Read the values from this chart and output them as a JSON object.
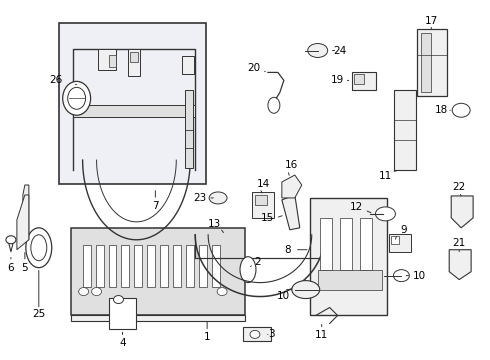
{
  "bg_color": "#ffffff",
  "line_color": "#333333",
  "text_color": "#000000",
  "fig_width": 4.9,
  "fig_height": 3.6,
  "dpi": 100,
  "label_fs": 7.5,
  "box_fill": "#eef0f5",
  "part_fill": "#f0f0f0",
  "part_fill2": "#e0e0e0"
}
